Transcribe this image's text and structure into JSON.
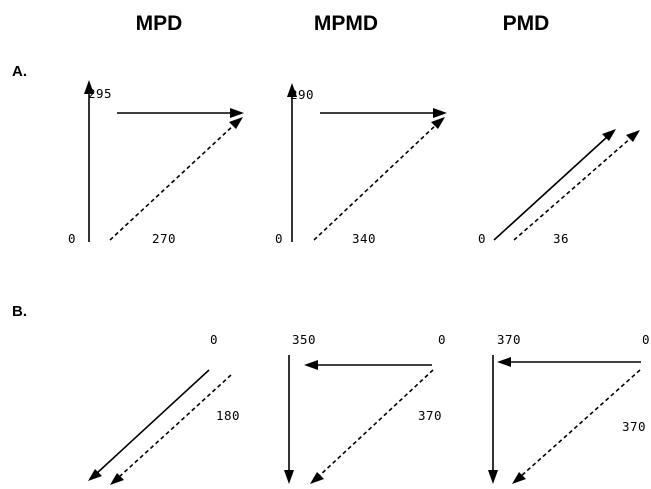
{
  "columns": [
    "MPD",
    "MPMD",
    "PMD"
  ],
  "rows": [
    "A.",
    "B."
  ],
  "panels": {
    "a_mpd": {
      "labels": [
        "295",
        "0",
        "270"
      ]
    },
    "a_mpmd": {
      "labels": [
        "290",
        "0",
        "340"
      ]
    },
    "a_pmd": {
      "labels": [
        "0",
        "36"
      ]
    },
    "b_mpd": {
      "labels": [
        "0",
        "180"
      ]
    },
    "b_mpmd": {
      "labels": [
        "350",
        "0",
        "370"
      ]
    },
    "b_pmd": {
      "labels": [
        "370",
        "0",
        "370"
      ]
    }
  }
}
